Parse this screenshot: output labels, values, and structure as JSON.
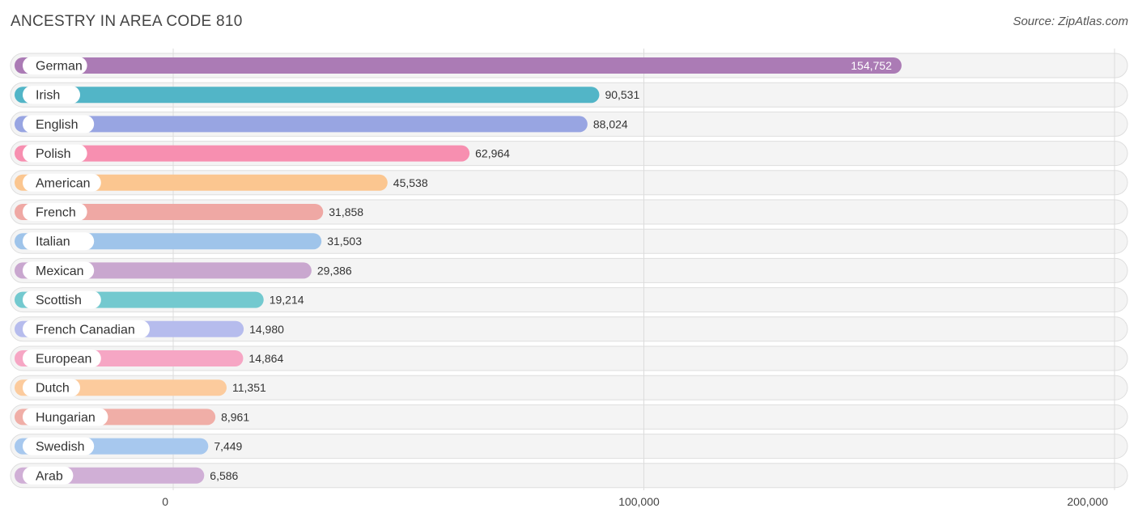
{
  "header": {
    "title": "ANCESTRY IN AREA CODE 810",
    "source": "Source: ZipAtlas.com"
  },
  "chart_data": {
    "type": "bar",
    "orientation": "horizontal",
    "title": "ANCESTRY IN AREA CODE 810",
    "xlim": [
      0,
      200000
    ],
    "ticks": [
      {
        "value": 0,
        "label": "0"
      },
      {
        "value": 100000,
        "label": "100,000"
      },
      {
        "value": 200000,
        "label": "200,000"
      }
    ],
    "categories": [
      "German",
      "Irish",
      "English",
      "Polish",
      "American",
      "French",
      "Italian",
      "Mexican",
      "Scottish",
      "French Canadian",
      "European",
      "Dutch",
      "Hungarian",
      "Swedish",
      "Arab"
    ],
    "values": [
      154752,
      90531,
      88024,
      62964,
      45538,
      31858,
      31503,
      29386,
      19214,
      14980,
      14864,
      11351,
      8961,
      7449,
      6586
    ],
    "value_labels": [
      "154,752",
      "90,531",
      "88,024",
      "62,964",
      "45,538",
      "31,858",
      "31,503",
      "29,386",
      "19,214",
      "14,980",
      "14,864",
      "11,351",
      "8,961",
      "7,449",
      "6,586"
    ],
    "colors": [
      "#ab7bb5",
      "#52b5c7",
      "#98a5e2",
      "#f78fb0",
      "#fbc690",
      "#efa8a4",
      "#9fc4ea",
      "#c9a7cf",
      "#73c9cf",
      "#b6bced",
      "#f6a6c4",
      "#fccb9d",
      "#f0aea7",
      "#a7c8ee",
      "#d0afd6"
    ]
  }
}
